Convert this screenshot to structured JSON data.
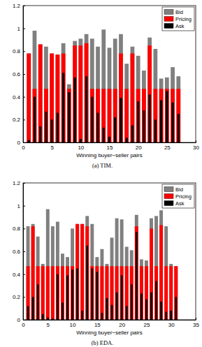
{
  "chart_data": [
    {
      "type": "bar",
      "title": "(a) TIM.",
      "xlabel": "Winning buyer−seller pairs",
      "x": [
        1,
        2,
        3,
        4,
        5,
        6,
        7,
        8,
        9,
        10,
        11,
        12,
        13,
        14,
        15,
        16,
        17,
        18,
        19,
        20,
        21,
        22,
        23,
        24,
        25,
        26,
        27
      ],
      "series": [
        {
          "name": "Bid",
          "color": "#808080",
          "values": [
            0.78,
            0.98,
            0.86,
            0.84,
            0.78,
            0.77,
            0.87,
            0.51,
            0.89,
            0.91,
            0.95,
            0.91,
            0.84,
            0.99,
            0.83,
            0.91,
            0.95,
            0.69,
            0.84,
            0.76,
            0.63,
            0.92,
            0.82,
            0.56,
            0.57,
            0.66,
            0.58
          ]
        },
        {
          "name": "Pricing",
          "color": "#ff0000",
          "values": [
            0.78,
            0.47,
            0.86,
            0.47,
            0.78,
            0.77,
            0.78,
            0.47,
            0.85,
            0.85,
            0.87,
            0.47,
            0.47,
            0.47,
            0.47,
            0.47,
            0.78,
            0.47,
            0.78,
            0.47,
            0.47,
            0.85,
            0.47,
            0.47,
            0.47,
            0.47,
            0.47
          ]
        },
        {
          "name": "Ask",
          "color": "#000000",
          "values": [
            0.02,
            0.4,
            0.14,
            0.27,
            0.2,
            0.26,
            0.61,
            0.44,
            0.57,
            0.03,
            0.58,
            0.4,
            0.26,
            0.13,
            0.05,
            0.22,
            0.39,
            0.04,
            0.15,
            0.36,
            0.28,
            0.42,
            0.2,
            0.37,
            0.45,
            0.35,
            0.25
          ]
        }
      ],
      "xlim": [
        0,
        30
      ],
      "xticks": [
        0,
        5,
        10,
        15,
        20,
        25,
        30
      ],
      "ylim": [
        0,
        1.2
      ],
      "yticks": [
        0,
        0.2,
        0.4,
        0.6,
        0.8,
        1,
        1.2
      ],
      "legend": "top-right"
    },
    {
      "type": "bar",
      "title": "(b) EDA.",
      "xlabel": "Winning buyer−seller pairs",
      "x": [
        1,
        2,
        3,
        4,
        5,
        6,
        7,
        8,
        9,
        10,
        11,
        12,
        13,
        14,
        15,
        16,
        17,
        18,
        19,
        20,
        21,
        22,
        23,
        24,
        25,
        26,
        27,
        28,
        29,
        30,
        31
      ],
      "series": [
        {
          "name": "Bid",
          "color": "#808080",
          "values": [
            0.82,
            0.84,
            0.73,
            0.49,
            0.97,
            0.82,
            0.86,
            0.58,
            0.55,
            0.8,
            0.84,
            0.84,
            0.91,
            0.84,
            0.55,
            0.62,
            0.49,
            0.72,
            0.89,
            0.88,
            0.64,
            0.61,
            0.92,
            0.53,
            0.52,
            0.89,
            0.91,
            0.96,
            0.82,
            0.49,
            0.47
          ]
        },
        {
          "name": "Pricing",
          "color": "#ff0000",
          "values": [
            0.47,
            0.82,
            0.47,
            0.47,
            0.47,
            0.47,
            0.47,
            0.47,
            0.47,
            0.47,
            0.84,
            0.84,
            0.82,
            0.47,
            0.47,
            0.47,
            0.47,
            0.47,
            0.47,
            0.47,
            0.47,
            0.47,
            0.82,
            0.47,
            0.47,
            0.8,
            0.47,
            0.83,
            0.47,
            0.47,
            0.47
          ]
        },
        {
          "name": "Ask",
          "color": "#000000",
          "values": [
            0.12,
            0.2,
            0.31,
            0.05,
            0.02,
            0.01,
            0.4,
            0.15,
            0.39,
            0.44,
            0.45,
            0.08,
            0.65,
            0.45,
            0.42,
            0.06,
            0.19,
            0.13,
            0.24,
            0.39,
            0.12,
            0.31,
            0.77,
            0.23,
            0.18,
            0.24,
            0.34,
            0.16,
            0.07,
            0.08,
            0.2
          ]
        }
      ],
      "xlim": [
        0,
        35
      ],
      "xticks": [
        0,
        5,
        10,
        15,
        20,
        25,
        30,
        35
      ],
      "ylim": [
        0,
        1.2
      ],
      "yticks": [
        0,
        0.2,
        0.4,
        0.6,
        0.8,
        1,
        1.2
      ],
      "legend": "top-right"
    }
  ]
}
